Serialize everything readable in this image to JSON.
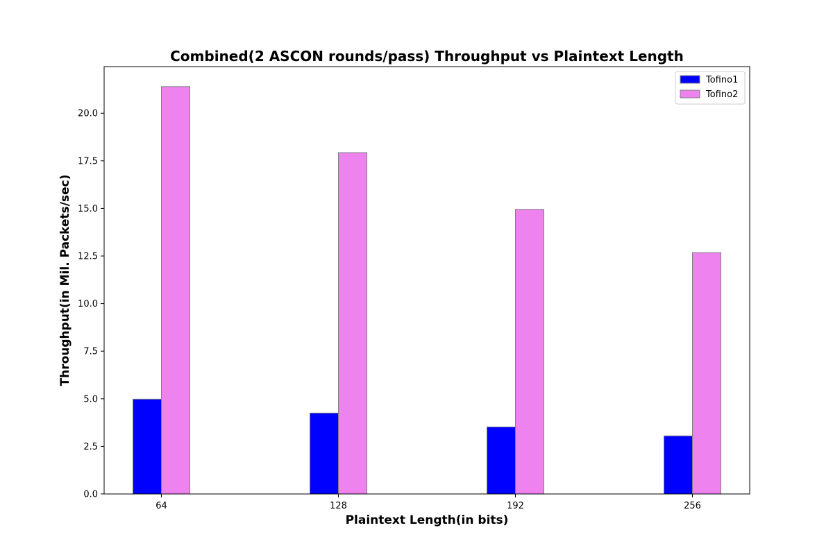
{
  "chart_data": {
    "type": "bar",
    "title": "Combined(2 ASCON rounds/pass) Throughput vs Plaintext Length",
    "xlabel": "Plaintext Length(in bits)",
    "ylabel": "Throughput(in Mil. Packets/sec)",
    "categories": [
      "64",
      "128",
      "192",
      "256"
    ],
    "series": [
      {
        "name": "Tofino1",
        "color": "#0000ff",
        "values": [
          4.98,
          4.25,
          3.52,
          3.05
        ]
      },
      {
        "name": "Tofino2",
        "color": "#ee82ee",
        "values": [
          21.4,
          17.93,
          14.95,
          12.68
        ]
      }
    ],
    "bar_edge_color": "#808080",
    "ylim": [
      0,
      22.45
    ],
    "yticks": [
      "0.0",
      "2.5",
      "5.0",
      "7.5",
      "10.0",
      "12.5",
      "15.0",
      "17.5",
      "20.0"
    ],
    "grid": false,
    "legend_position": "top-right"
  }
}
